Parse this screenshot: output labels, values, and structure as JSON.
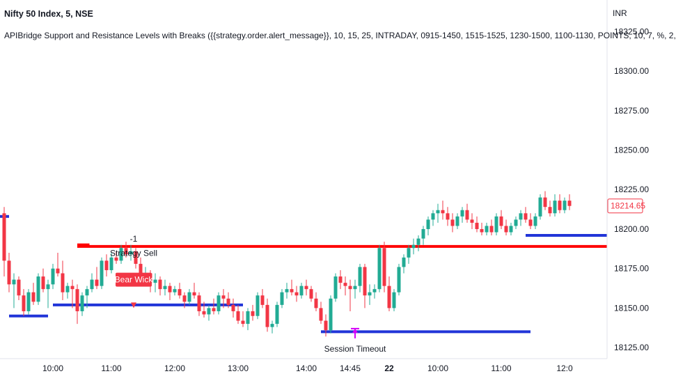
{
  "header": {
    "title": "Nifty 50 Index, 5, NSE",
    "indicator": "APIBridge Support and Resistance Levels with Breaks ({{strategy.order.alert_message}}, 10, 15, 25, INTRADAY, 0915-1450, 1515-1525, 1230-1500, 1100-1130, POINTS, 10, 7, %, 2,",
    "currency": "INR"
  },
  "chart_data": {
    "type": "candlestick",
    "title": "Nifty 50 Index, 5, NSE",
    "y_axis": {
      "position": "right",
      "unit": "INR",
      "range": [
        18118,
        18345
      ],
      "ticks": [
        18125,
        18150,
        18175,
        18200,
        18225,
        18250,
        18275,
        18300,
        18325
      ]
    },
    "y_tick_labels": [
      "18125.00",
      "18150.00",
      "18175.00",
      "18200.00",
      "18225.00",
      "18250.00",
      "18275.00",
      "18300.00",
      "18325.00"
    ],
    "x_tick_labels": [
      "10:00",
      "11:00",
      "12:00",
      "13:00",
      "14:00",
      "14:45",
      "22",
      "10:00",
      "11:00",
      "12:0"
    ],
    "x_tick_index": [
      10,
      22,
      35,
      48,
      62,
      71,
      79,
      89,
      102,
      115
    ],
    "last_price": {
      "value": 18214.65,
      "label": "18214.65",
      "color": "#f23645"
    },
    "colors": {
      "up": "#22ab94",
      "down": "#f23645",
      "support": "#2135d8",
      "resistance": "#ff0000",
      "timeout": "#d500f9"
    },
    "candles": [
      [
        18210,
        18214,
        18170,
        18180
      ],
      [
        18180,
        18185,
        18160,
        18165
      ],
      [
        18165,
        18172,
        18150,
        18168
      ],
      [
        18168,
        18170,
        18155,
        18158
      ],
      [
        18158,
        18162,
        18145,
        18148
      ],
      [
        18148,
        18162,
        18146,
        18160
      ],
      [
        18160,
        18166,
        18152,
        18154
      ],
      [
        18154,
        18172,
        18152,
        18170
      ],
      [
        18170,
        18175,
        18160,
        18162
      ],
      [
        18162,
        18168,
        18150,
        18165
      ],
      [
        18165,
        18178,
        18162,
        18175
      ],
      [
        18175,
        18185,
        18170,
        18172
      ],
      [
        18172,
        18180,
        18155,
        18160
      ],
      [
        18160,
        18166,
        18156,
        18164
      ],
      [
        18164,
        18168,
        18150,
        18162
      ],
      [
        18162,
        18165,
        18140,
        18148
      ],
      [
        18148,
        18160,
        18145,
        18158
      ],
      [
        18158,
        18164,
        18150,
        18162
      ],
      [
        18162,
        18172,
        18160,
        18168
      ],
      [
        18168,
        18176,
        18162,
        18164
      ],
      [
        18164,
        18182,
        18162,
        18180
      ],
      [
        18180,
        18184,
        18170,
        18174
      ],
      [
        18174,
        18185,
        18172,
        18182
      ],
      [
        18182,
        18186,
        18178,
        18180
      ],
      [
        18180,
        18190,
        18178,
        18188
      ],
      [
        18188,
        18192,
        18182,
        18184
      ],
      [
        18184,
        18190,
        18180,
        18186
      ],
      [
        18186,
        18188,
        18175,
        18178
      ],
      [
        18178,
        18182,
        18166,
        18170
      ],
      [
        18170,
        18176,
        18164,
        18172
      ],
      [
        18172,
        18174,
        18160,
        18166
      ],
      [
        18166,
        18172,
        18160,
        18168
      ],
      [
        18168,
        18170,
        18158,
        18162
      ],
      [
        18162,
        18168,
        18158,
        18164
      ],
      [
        18164,
        18166,
        18155,
        18160
      ],
      [
        18160,
        18164,
        18158,
        18162
      ],
      [
        18162,
        18166,
        18156,
        18158
      ],
      [
        18158,
        18160,
        18150,
        18154
      ],
      [
        18154,
        18162,
        18152,
        18160
      ],
      [
        18160,
        18166,
        18156,
        18158
      ],
      [
        18158,
        18160,
        18145,
        18148
      ],
      [
        18148,
        18154,
        18144,
        18146
      ],
      [
        18146,
        18152,
        18142,
        18150
      ],
      [
        18150,
        18156,
        18146,
        18148
      ],
      [
        18148,
        18160,
        18146,
        18158
      ],
      [
        18158,
        18162,
        18150,
        18156
      ],
      [
        18156,
        18160,
        18150,
        18152
      ],
      [
        18152,
        18156,
        18144,
        18148
      ],
      [
        18148,
        18152,
        18140,
        18142
      ],
      [
        18142,
        18148,
        18138,
        18140
      ],
      [
        18140,
        18150,
        18136,
        18148
      ],
      [
        18148,
        18152,
        18142,
        18145
      ],
      [
        18145,
        18160,
        18143,
        18158
      ],
      [
        18158,
        18162,
        18150,
        18152
      ],
      [
        18152,
        18156,
        18135,
        18138
      ],
      [
        18138,
        18142,
        18134,
        18140
      ],
      [
        18140,
        18154,
        18138,
        18152
      ],
      [
        18152,
        18162,
        18150,
        18160
      ],
      [
        18160,
        18166,
        18156,
        18162
      ],
      [
        18162,
        18168,
        18158,
        18160
      ],
      [
        18160,
        18164,
        18154,
        18158
      ],
      [
        18158,
        18166,
        18156,
        18164
      ],
      [
        18164,
        18168,
        18158,
        18162
      ],
      [
        18162,
        18164,
        18154,
        18156
      ],
      [
        18156,
        18160,
        18148,
        18150
      ],
      [
        18150,
        18154,
        18140,
        18142
      ],
      [
        18142,
        18146,
        18132,
        18136
      ],
      [
        18136,
        18158,
        18134,
        18156
      ],
      [
        18156,
        18172,
        18154,
        18170
      ],
      [
        18170,
        18174,
        18162,
        18166
      ],
      [
        18166,
        18170,
        18158,
        18164
      ],
      [
        18164,
        18168,
        18148,
        18162
      ],
      [
        18162,
        18168,
        18156,
        18164
      ],
      [
        18164,
        18178,
        18160,
        18176
      ],
      [
        18176,
        18178,
        18150,
        18158
      ],
      [
        18158,
        18165,
        18152,
        18160
      ],
      [
        18160,
        18165,
        18156,
        18162
      ],
      [
        18162,
        18190,
        18160,
        18188
      ],
      [
        18188,
        18192,
        18160,
        18164
      ],
      [
        18164,
        18170,
        18148,
        18150
      ],
      [
        18150,
        18162,
        18148,
        18160
      ],
      [
        18160,
        18178,
        18158,
        18176
      ],
      [
        18176,
        18184,
        18172,
        18182
      ],
      [
        18182,
        18190,
        18178,
        18188
      ],
      [
        18188,
        18194,
        18184,
        18190
      ],
      [
        18190,
        18196,
        18186,
        18194
      ],
      [
        18194,
        18202,
        18190,
        18200
      ],
      [
        18200,
        18208,
        18196,
        18206
      ],
      [
        18206,
        18212,
        18202,
        18210
      ],
      [
        18210,
        18216,
        18204,
        18212
      ],
      [
        18212,
        18218,
        18206,
        18210
      ],
      [
        18210,
        18214,
        18202,
        18206
      ],
      [
        18206,
        18210,
        18198,
        18202
      ],
      [
        18202,
        18210,
        18200,
        18208
      ],
      [
        18208,
        18214,
        18204,
        18212
      ],
      [
        18212,
        18216,
        18204,
        18206
      ],
      [
        18206,
        18210,
        18200,
        18204
      ],
      [
        18204,
        18208,
        18198,
        18200
      ],
      [
        18200,
        18204,
        18196,
        18198
      ],
      [
        18198,
        18204,
        18196,
        18202
      ],
      [
        18202,
        18206,
        18196,
        18198
      ],
      [
        18198,
        18210,
        18196,
        18208
      ],
      [
        18208,
        18212,
        18200,
        18202
      ],
      [
        18202,
        18206,
        18196,
        18198
      ],
      [
        18198,
        18204,
        18196,
        18202
      ],
      [
        18202,
        18208,
        18200,
        18206
      ],
      [
        18206,
        18212,
        18202,
        18210
      ],
      [
        18210,
        18214,
        18204,
        18206
      ],
      [
        18206,
        18210,
        18200,
        18202
      ],
      [
        18202,
        18210,
        18200,
        18208
      ],
      [
        18208,
        18222,
        18206,
        18220
      ],
      [
        18220,
        18224,
        18212,
        18214
      ],
      [
        18214,
        18218,
        18208,
        18210
      ],
      [
        18210,
        18222,
        18208,
        18218
      ],
      [
        18218,
        18222,
        18210,
        18212
      ],
      [
        18212,
        18220,
        18210,
        18218
      ],
      [
        18218,
        18222,
        18212,
        18214.65
      ]
    ],
    "levels": [
      {
        "kind": "support",
        "price": 18208,
        "from": -1,
        "to": 1
      },
      {
        "kind": "support",
        "price": 18145,
        "from": 1,
        "to": 9
      },
      {
        "kind": "support",
        "price": 18152,
        "from": 10,
        "to": 49
      },
      {
        "kind": "resistance",
        "price": 18190,
        "from": 15,
        "to": 17.5
      },
      {
        "kind": "resistance",
        "price": 18189,
        "from": 15,
        "to": 124
      },
      {
        "kind": "support",
        "price": 18135,
        "from": 65,
        "to": 108
      },
      {
        "kind": "support",
        "price": 18196,
        "from": 107,
        "to": 124
      }
    ],
    "annotations": {
      "resistance_label": {
        "text": "-1",
        "index": 26,
        "price": 18192
      },
      "strategy_sell": {
        "text": "Strategy Sell",
        "index": 26,
        "price": 18183
      },
      "bear_wick": {
        "text": "Bear Wick",
        "index": 26,
        "price": 18168,
        "arrow_price": 18150
      },
      "session_timeout": {
        "text": "Session Timeout",
        "index": 72,
        "price": 18126,
        "arrow_price": 18137
      }
    }
  }
}
